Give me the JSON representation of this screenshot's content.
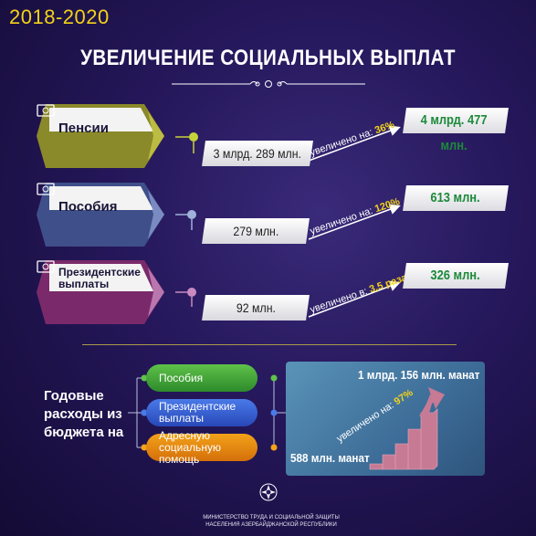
{
  "header": {
    "years": "2018-2020",
    "title": "УВЕЛИЧЕНИЕ СОЦИАЛЬНЫХ ВЫПЛАТ"
  },
  "rows": [
    {
      "label": "Пенсии",
      "old_value": "3 млрд. 289 млн.",
      "increase_text": "увеличено на:",
      "increase_value": "36%",
      "new_value": "4 млрд. 477 млн.",
      "color": "#8a8a2a"
    },
    {
      "label": "Пособия",
      "old_value": "279 млн.",
      "increase_text": "увеличено на:",
      "increase_value": "120%",
      "new_value": "613 млн.",
      "color": "#3f4f8a"
    },
    {
      "label": "Президентские выплаты",
      "old_value": "92 млн.",
      "increase_text": "увеличено в:",
      "increase_value": "3,5 раза",
      "new_value": "326 млн.",
      "color": "#7a2a6a"
    }
  ],
  "annual": {
    "label": "Годовые расходы из бюджета на",
    "items": [
      "Пособия",
      "Президентские выплаты",
      "Адресную социальную помощь"
    ],
    "start_value": "588 млн. манат",
    "end_value": "1 млрд. 156 млн. манат",
    "increase_text": "увеличено на:",
    "increase_value": "97%"
  },
  "footer": {
    "ministry": "МИНИСТЕРСТВО ТРУДА И СОЦИАЛЬНОЙ ЗАЩИТЫ НАСЕЛЕНИЯ АЗЕРБАЙДЖАНСКОЙ РЕСПУБЛИКИ"
  },
  "colors": {
    "accent_yellow": "#f2d21a",
    "green_value": "#1d8a3a",
    "badge_olive": "#8a8a2a",
    "badge_blue": "#3f4f8a",
    "badge_purple": "#7a2a6a"
  },
  "icons": [
    "money-icon",
    "ministry-emblem-icon",
    "ornament-divider-icon"
  ]
}
